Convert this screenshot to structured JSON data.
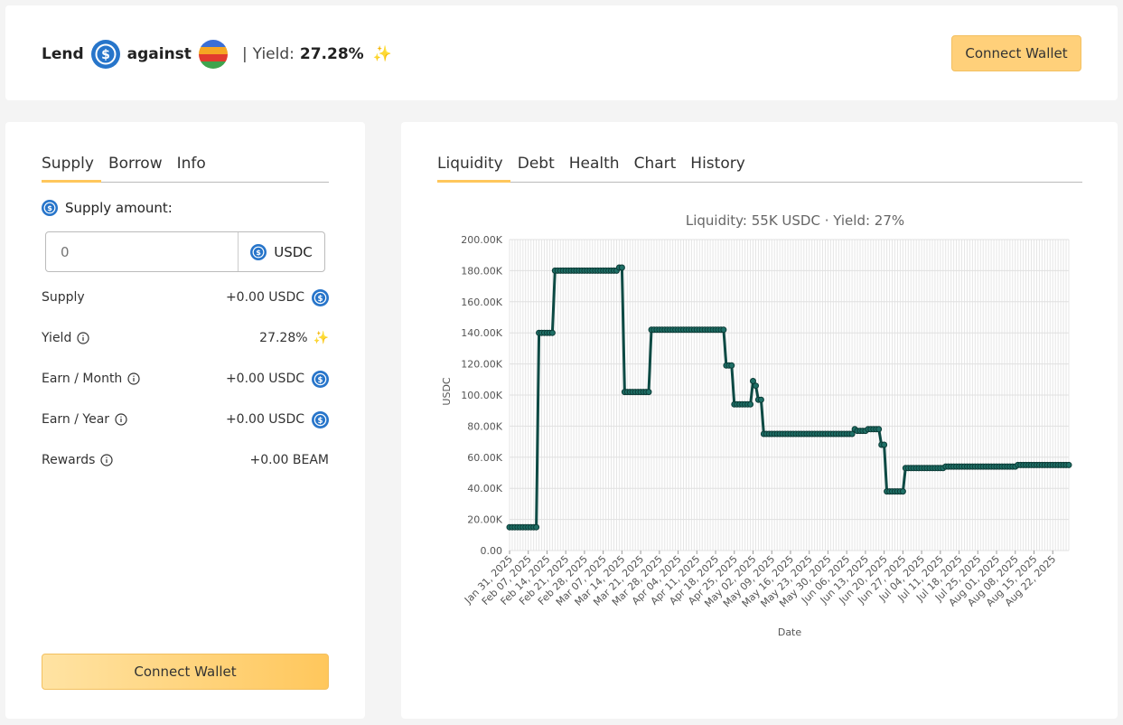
{
  "header": {
    "lend": "Lend",
    "against": "against",
    "separator": "|",
    "yield_label": "Yield:",
    "yield_value": "27.28%",
    "connect_label": "Connect Wallet"
  },
  "left_panel": {
    "tabs": [
      {
        "label": "Supply"
      },
      {
        "label": "Borrow"
      },
      {
        "label": "Info"
      }
    ],
    "supply_amount_label": "Supply amount:",
    "amount_placeholder": "0",
    "currency": "USDC",
    "rows": [
      {
        "label": "Supply",
        "value": "+0.00 USDC"
      },
      {
        "label": "Yield",
        "value": "27.28%"
      },
      {
        "label": "Earn / Month",
        "value": "+0.00 USDC"
      },
      {
        "label": "Earn / Year",
        "value": "+0.00 USDC"
      },
      {
        "label": "Rewards",
        "value": "+0.00 BEAM"
      }
    ],
    "connect_label": "Connect Wallet"
  },
  "right_panel": {
    "tabs": [
      {
        "label": "Liquidity"
      },
      {
        "label": "Debt"
      },
      {
        "label": "Health"
      },
      {
        "label": "Chart"
      },
      {
        "label": "History"
      }
    ]
  },
  "colors": {
    "accent": "#ffc75c",
    "usdc": "#2775ca",
    "line": "#0d4a44"
  },
  "chart_data": {
    "type": "line",
    "title": "Liquidity: 55K USDC · Yield: 27%",
    "xlabel": "Date",
    "ylabel": "USDC",
    "ylim": [
      0,
      200000
    ],
    "yticks": [
      "0.00",
      "20.00K",
      "40.00K",
      "60.00K",
      "80.00K",
      "100.00K",
      "120.00K",
      "140.00K",
      "160.00K",
      "180.00K",
      "200.00K"
    ],
    "xticks": [
      "Jan 31, 2025",
      "Feb 07, 2025",
      "Feb 14, 2025",
      "Feb 21, 2025",
      "Feb 28, 2025",
      "Mar 07, 2025",
      "Mar 14, 2025",
      "Mar 21, 2025",
      "Mar 28, 2025",
      "Apr 04, 2025",
      "Apr 11, 2025",
      "Apr 18, 2025",
      "Apr 25, 2025",
      "May 02, 2025",
      "May 09, 2025",
      "May 16, 2025",
      "May 23, 2025",
      "May 30, 2025",
      "Jun 06, 2025",
      "Jun 13, 2025",
      "Jun 20, 2025",
      "Jun 27, 2025",
      "Jul 04, 2025",
      "Jul 11, 2025",
      "Jul 18, 2025",
      "Jul 25, 2025",
      "Aug 01, 2025",
      "Aug 08, 2025",
      "Aug 15, 2025",
      "Aug 22, 2025"
    ],
    "x_start": "2025-01-31",
    "x_end": "2025-08-28",
    "grid": true,
    "series": [
      {
        "points": [
          [
            "2025-01-31",
            15000
          ],
          [
            "2025-02-10",
            15000
          ],
          [
            "2025-02-11",
            140000
          ],
          [
            "2025-02-16",
            140000
          ],
          [
            "2025-02-17",
            180000
          ],
          [
            "2025-03-12",
            180000
          ],
          [
            "2025-03-13",
            182000
          ],
          [
            "2025-03-14",
            182000
          ],
          [
            "2025-03-15",
            102000
          ],
          [
            "2025-03-24",
            102000
          ],
          [
            "2025-03-25",
            142000
          ],
          [
            "2025-04-21",
            142000
          ],
          [
            "2025-04-22",
            119000
          ],
          [
            "2025-04-24",
            119000
          ],
          [
            "2025-04-25",
            94000
          ],
          [
            "2025-05-01",
            94000
          ],
          [
            "2025-05-02",
            109000
          ],
          [
            "2025-05-03",
            106000
          ],
          [
            "2025-05-04",
            97000
          ],
          [
            "2025-05-05",
            97000
          ],
          [
            "2025-05-06",
            75000
          ],
          [
            "2025-06-08",
            75000
          ],
          [
            "2025-06-09",
            78000
          ],
          [
            "2025-06-10",
            77000
          ],
          [
            "2025-06-13",
            77000
          ],
          [
            "2025-06-14",
            78000
          ],
          [
            "2025-06-18",
            78000
          ],
          [
            "2025-06-19",
            68000
          ],
          [
            "2025-06-20",
            68000
          ],
          [
            "2025-06-21",
            38000
          ],
          [
            "2025-06-27",
            38000
          ],
          [
            "2025-06-28",
            53000
          ],
          [
            "2025-07-12",
            53000
          ],
          [
            "2025-07-13",
            54000
          ],
          [
            "2025-08-08",
            54000
          ],
          [
            "2025-08-09",
            55000
          ],
          [
            "2025-08-28",
            55000
          ]
        ]
      }
    ]
  }
}
